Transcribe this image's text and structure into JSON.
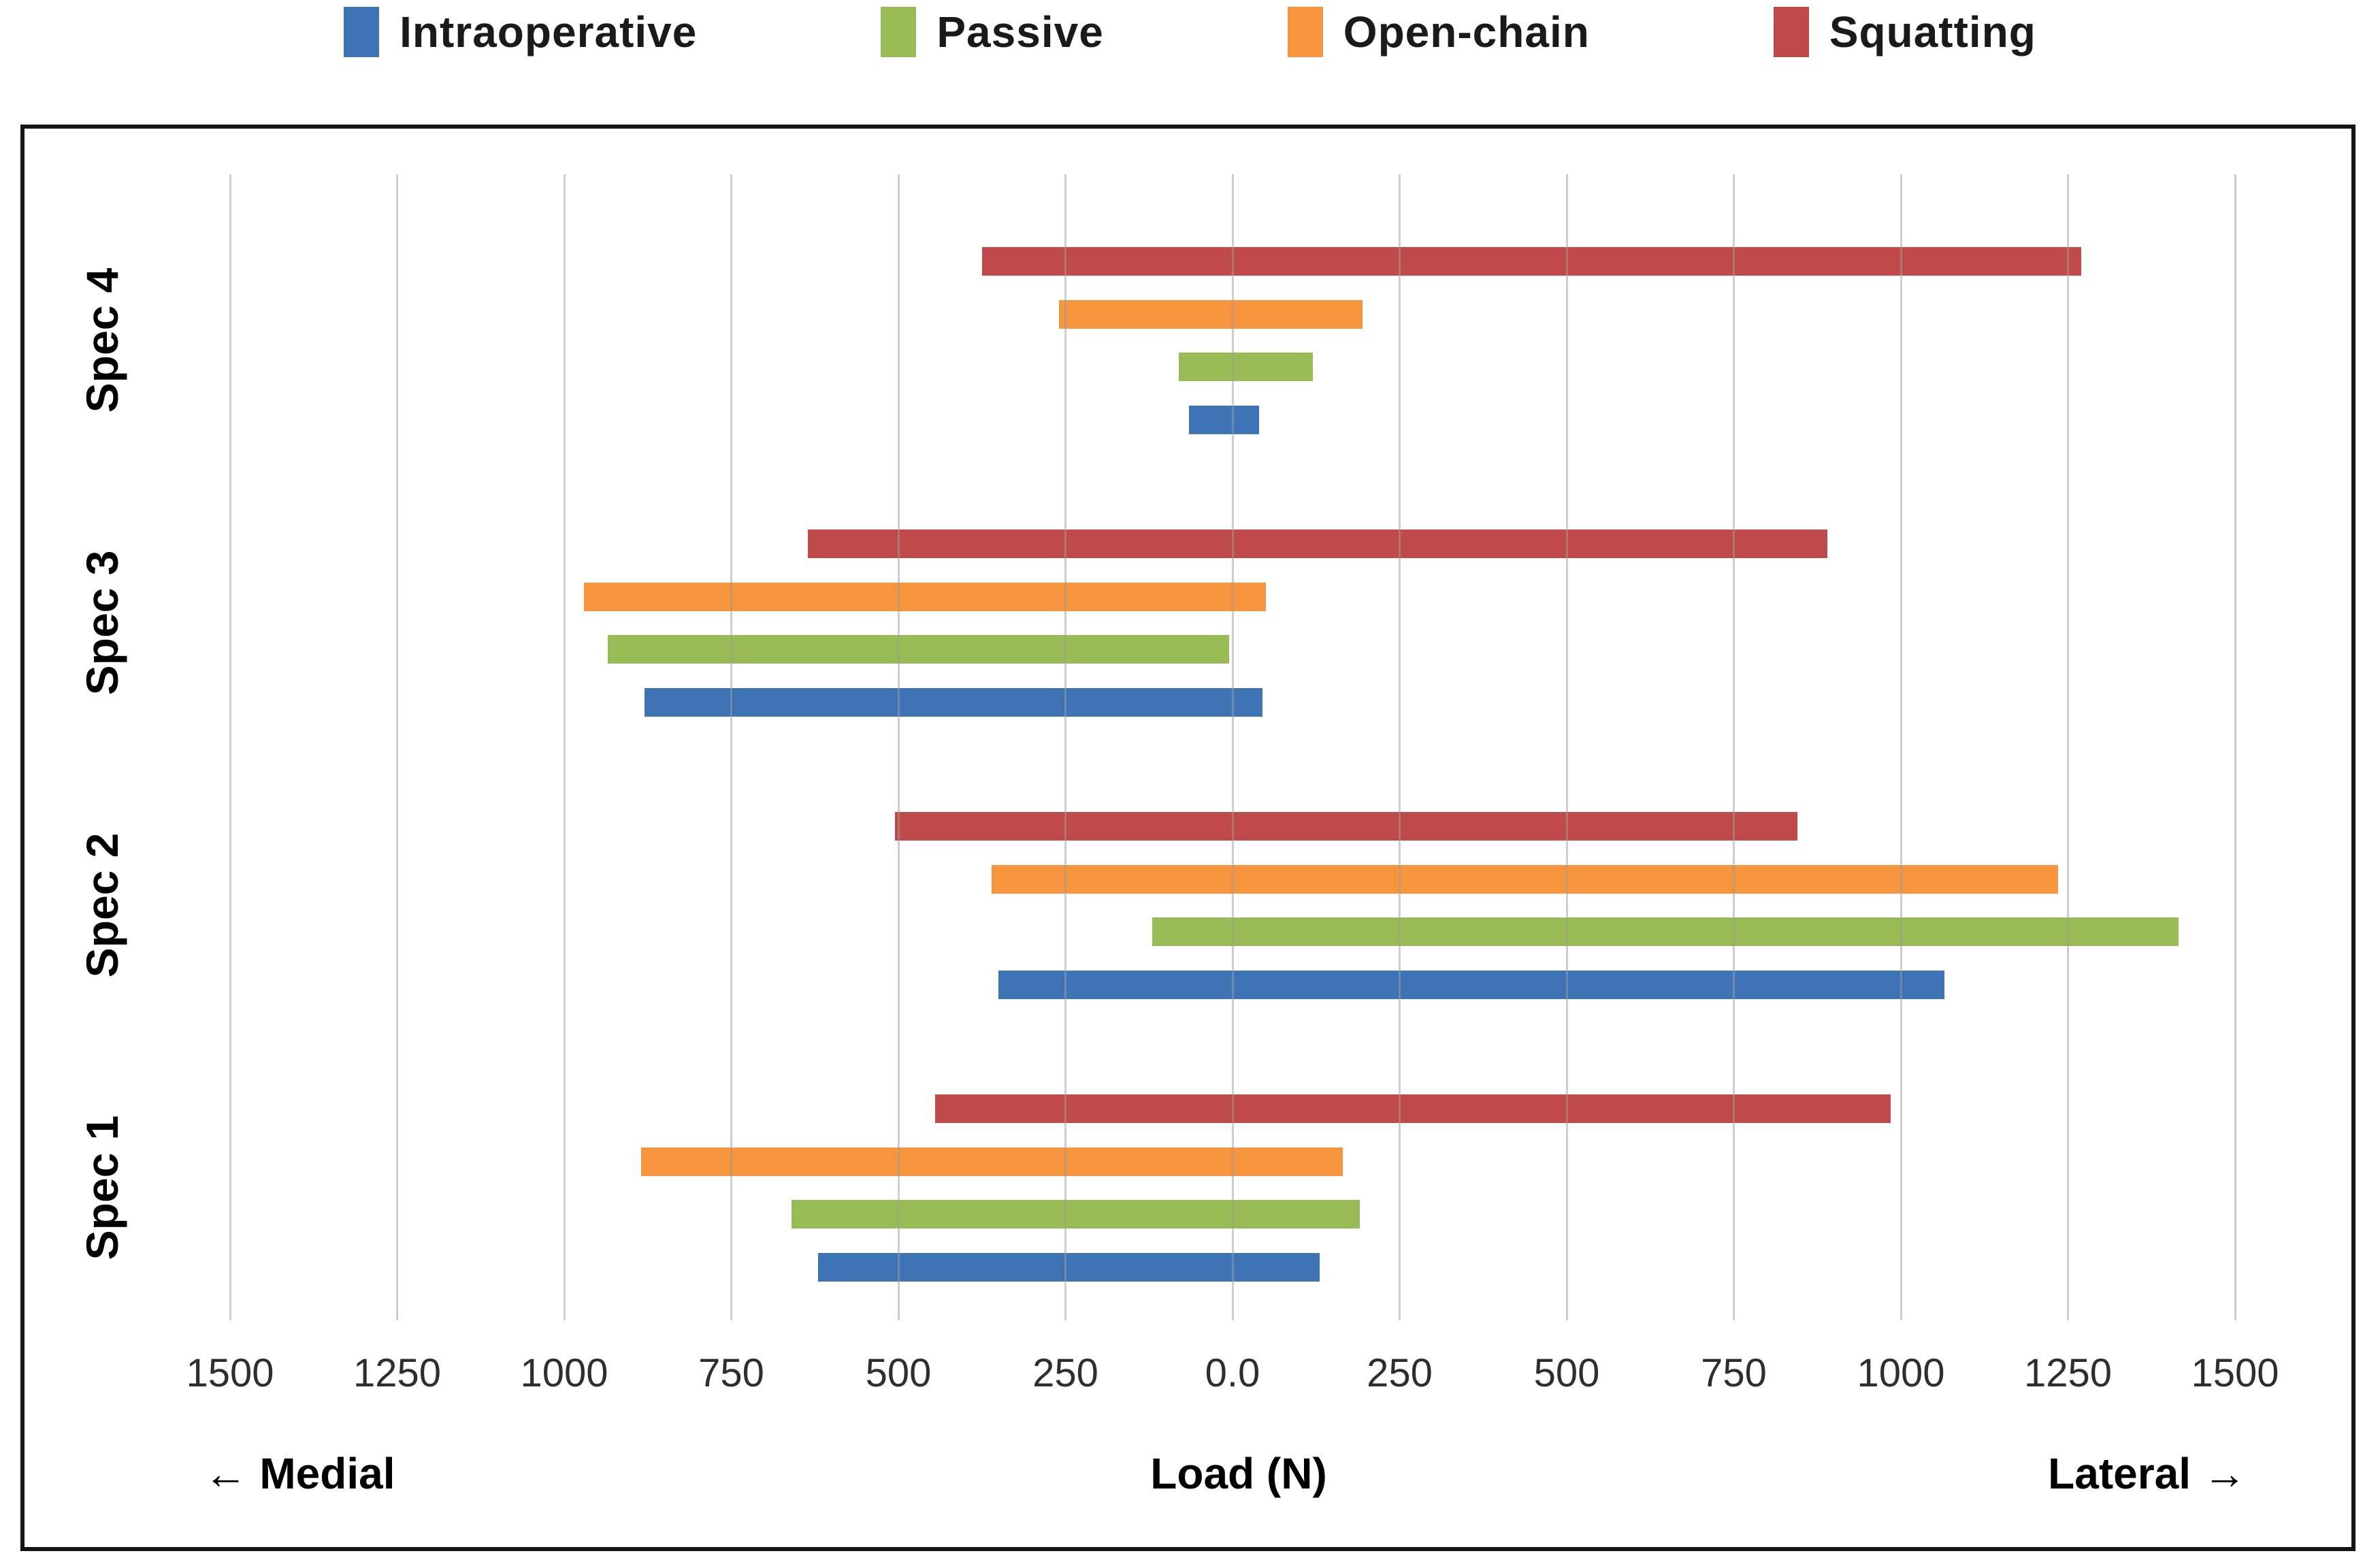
{
  "page": {
    "background": "#ffffff",
    "grid_color": "#cfcfcf",
    "frame_color": "#151515"
  },
  "legend": {
    "position": "top",
    "items": [
      {
        "label": "Intraoperative",
        "color": "#3E74B5"
      },
      {
        "label": "Passive",
        "color": "#99BB55"
      },
      {
        "label": "Open-chain",
        "color": "#F7953F"
      },
      {
        "label": "Squatting",
        "color": "#C04A4A"
      }
    ]
  },
  "chart_data": {
    "type": "bar",
    "subtype": "horizontal-diverging-range-bars",
    "title": "",
    "xlabel": "Load (N)",
    "ylabel": "",
    "direction_left_label": "← Medial",
    "direction_right_label": "Lateral →",
    "units": "N",
    "grid": true,
    "legend_position": "top",
    "xlim": [
      -1810,
      1680
    ],
    "x_ticks": [
      {
        "value": -1500,
        "label": "1500"
      },
      {
        "value": -1250,
        "label": "1250"
      },
      {
        "value": -1000,
        "label": "1000"
      },
      {
        "value": -750,
        "label": "750"
      },
      {
        "value": -500,
        "label": "500"
      },
      {
        "value": -250,
        "label": "250"
      },
      {
        "value": 0,
        "label": "0.0"
      },
      {
        "value": 250,
        "label": "250"
      },
      {
        "value": 500,
        "label": "500"
      },
      {
        "value": 750,
        "label": "750"
      },
      {
        "value": 1000,
        "label": "1000"
      },
      {
        "value": 1250,
        "label": "1250"
      },
      {
        "value": 1500,
        "label": "1500"
      }
    ],
    "categories_top_to_bottom": [
      "Spec 4",
      "Spec 3",
      "Spec 2",
      "Spec 1"
    ],
    "row_order_top_to_bottom": [
      "Squatting",
      "Open-chain",
      "Passive",
      "Intraoperative"
    ],
    "series": [
      {
        "name": "Intraoperative",
        "color": "#3E74B5",
        "ranges_medial_to_lateral": {
          "Spec 1": [
            -620,
            130
          ],
          "Spec 2": [
            -350,
            1065
          ],
          "Spec 3": [
            -880,
            45
          ],
          "Spec 4": [
            -65,
            40
          ]
        }
      },
      {
        "name": "Passive",
        "color": "#99BB55",
        "ranges_medial_to_lateral": {
          "Spec 1": [
            -660,
            190
          ],
          "Spec 2": [
            -120,
            1415
          ],
          "Spec 3": [
            -935,
            -5
          ],
          "Spec 4": [
            -80,
            120
          ]
        }
      },
      {
        "name": "Open-chain",
        "color": "#F7953F",
        "ranges_medial_to_lateral": {
          "Spec 1": [
            -885,
            165
          ],
          "Spec 2": [
            -360,
            1235
          ],
          "Spec 3": [
            -970,
            50
          ],
          "Spec 4": [
            -260,
            195
          ]
        }
      },
      {
        "name": "Squatting",
        "color": "#C04A4A",
        "ranges_medial_to_lateral": {
          "Spec 1": [
            -445,
            985
          ],
          "Spec 2": [
            -505,
            845
          ],
          "Spec 3": [
            -635,
            890
          ],
          "Spec 4": [
            -375,
            1270
          ]
        }
      }
    ]
  }
}
